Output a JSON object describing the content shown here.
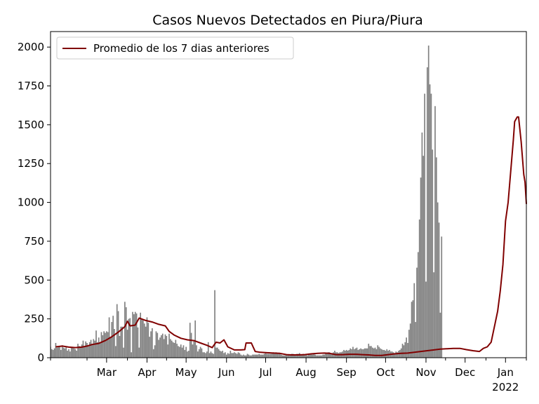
{
  "chart_data": {
    "type": "bar",
    "title": "Casos Nuevos Detectados en Piura/Piura",
    "xlabel": "",
    "ylabel": "",
    "ylim": [
      0,
      2100
    ],
    "y_ticks": [
      0,
      250,
      500,
      750,
      1000,
      1250,
      1500,
      1750,
      2000
    ],
    "x_ticks": [
      {
        "label": "Mar",
        "date": "2021-03-01"
      },
      {
        "label": "Apr",
        "date": "2021-04-01"
      },
      {
        "label": "May",
        "date": "2021-05-01"
      },
      {
        "label": "Jun",
        "date": "2021-06-01"
      },
      {
        "label": "Jul",
        "date": "2021-07-01"
      },
      {
        "label": "Aug",
        "date": "2021-08-01"
      },
      {
        "label": "Sep",
        "date": "2021-09-01"
      },
      {
        "label": "Oct",
        "date": "2021-10-01"
      },
      {
        "label": "Nov",
        "date": "2021-11-01"
      },
      {
        "label": "Dec",
        "date": "2021-12-01"
      },
      {
        "label": "Jan",
        "date": "2022-01-01"
      }
    ],
    "x_year_label": {
      "label": "2022",
      "date": "2022-01-01"
    },
    "x_range": [
      "2021-02-01",
      "2022-02-01"
    ],
    "legend": {
      "label": "Promedio de los 7 dias anteriores",
      "position": "upper-left"
    },
    "bar_color": "#808080",
    "line_color": "#800000",
    "series": [
      {
        "name": "Casos nuevos",
        "kind": "bar",
        "start_date": "2021-02-01",
        "values": [
          70,
          55,
          50,
          60,
          95,
          65,
          70,
          75,
          50,
          80,
          65,
          60,
          70,
          45,
          55,
          40,
          70,
          65,
          60,
          55,
          45,
          90,
          75,
          65,
          85,
          110,
          70,
          105,
          95,
          80,
          100,
          115,
          90,
          120,
          110,
          175,
          100,
          130,
          95,
          165,
          145,
          170,
          160,
          170,
          165,
          260,
          135,
          230,
          270,
          185,
          75,
          345,
          300,
          140,
          200,
          200,
          65,
          360,
          325,
          180,
          250,
          255,
          35,
          295,
          280,
          295,
          285,
          195,
          65,
          290,
          250,
          240,
          220,
          200,
          260,
          225,
          135,
          170,
          190,
          55,
          80,
          170,
          160,
          115,
          130,
          145,
          155,
          120,
          150,
          140,
          85,
          155,
          120,
          110,
          100,
          95,
          115,
          90,
          75,
          70,
          85,
          65,
          80,
          50,
          70,
          40,
          45,
          225,
          160,
          85,
          115,
          240,
          80,
          40,
          55,
          70,
          60,
          35,
          35,
          30,
          40,
          100,
          30,
          40,
          30,
          25,
          435,
          65,
          65,
          55,
          45,
          40,
          45,
          30,
          35,
          20,
          30,
          25,
          45,
          30,
          30,
          35,
          30,
          25,
          35,
          30,
          20,
          15,
          20,
          15,
          15,
          25,
          20,
          15,
          15,
          20,
          20,
          20,
          20,
          20,
          25,
          20,
          20,
          20,
          25,
          30,
          25,
          25,
          25,
          25,
          30,
          35,
          25,
          35,
          30,
          30,
          30,
          20,
          15,
          15,
          15,
          20,
          20,
          20,
          20,
          25,
          25,
          20,
          20,
          25,
          25,
          30,
          20,
          20,
          25,
          20,
          20,
          15,
          20,
          20,
          20,
          20,
          25,
          20,
          15,
          15,
          15,
          15,
          15,
          20,
          20,
          25,
          30,
          35,
          35,
          30,
          30,
          35,
          45,
          35,
          35,
          30,
          35,
          35,
          40,
          50,
          45,
          50,
          45,
          50,
          60,
          55,
          70,
          55,
          60,
          65,
          50,
          55,
          60,
          55,
          55,
          60,
          60,
          60,
          90,
          75,
          75,
          65,
          60,
          65,
          55,
          80,
          70,
          60,
          55,
          50,
          50,
          45,
          55,
          45,
          50,
          40,
          40,
          35,
          30,
          40,
          35,
          45,
          50,
          60,
          90,
          80,
          100,
          130,
          95,
          180,
          220,
          360,
          370,
          480,
          230,
          580,
          680,
          890,
          1160,
          1450,
          1300,
          1700,
          490,
          1870,
          2010,
          1760,
          1700,
          1340,
          550,
          1620,
          1290,
          1000,
          870,
          290,
          780
        ]
      },
      {
        "name": "Promedio de los 7 dias anteriores",
        "kind": "line",
        "points": [
          [
            "2021-02-05",
            70
          ],
          [
            "2021-02-10",
            75
          ],
          [
            "2021-02-15",
            68
          ],
          [
            "2021-02-20",
            65
          ],
          [
            "2021-02-25",
            68
          ],
          [
            "2021-03-01",
            75
          ],
          [
            "2021-03-05",
            85
          ],
          [
            "2021-03-10",
            92
          ],
          [
            "2021-03-15",
            110
          ],
          [
            "2021-03-20",
            135
          ],
          [
            "2021-03-25",
            165
          ],
          [
            "2021-03-30",
            200
          ],
          [
            "2021-04-01",
            235
          ],
          [
            "2021-04-03",
            205
          ],
          [
            "2021-04-07",
            210
          ],
          [
            "2021-04-10",
            255
          ],
          [
            "2021-04-15",
            240
          ],
          [
            "2021-04-20",
            230
          ],
          [
            "2021-04-25",
            215
          ],
          [
            "2021-04-30",
            205
          ],
          [
            "2021-05-03",
            170
          ],
          [
            "2021-05-07",
            145
          ],
          [
            "2021-05-12",
            125
          ],
          [
            "2021-05-17",
            115
          ],
          [
            "2021-05-22",
            110
          ],
          [
            "2021-05-27",
            95
          ],
          [
            "2021-06-01",
            80
          ],
          [
            "2021-06-05",
            65
          ],
          [
            "2021-06-08",
            100
          ],
          [
            "2021-06-11",
            95
          ],
          [
            "2021-06-14",
            115
          ],
          [
            "2021-06-17",
            70
          ],
          [
            "2021-06-22",
            50
          ],
          [
            "2021-06-27",
            50
          ],
          [
            "2021-06-30",
            52
          ],
          [
            "2021-07-01",
            95
          ],
          [
            "2021-07-05",
            95
          ],
          [
            "2021-07-08",
            40
          ],
          [
            "2021-07-12",
            35
          ],
          [
            "2021-07-17",
            32
          ],
          [
            "2021-07-22",
            30
          ],
          [
            "2021-07-27",
            28
          ],
          [
            "2021-08-01",
            20
          ],
          [
            "2021-08-05",
            18
          ],
          [
            "2021-08-10",
            18
          ],
          [
            "2021-08-15",
            20
          ],
          [
            "2021-08-20",
            25
          ],
          [
            "2021-08-25",
            28
          ],
          [
            "2021-08-30",
            30
          ],
          [
            "2021-09-03",
            28
          ],
          [
            "2021-09-08",
            20
          ],
          [
            "2021-09-13",
            20
          ],
          [
            "2021-09-18",
            22
          ],
          [
            "2021-09-23",
            22
          ],
          [
            "2021-09-28",
            20
          ],
          [
            "2021-10-03",
            18
          ],
          [
            "2021-10-08",
            15
          ],
          [
            "2021-10-13",
            15
          ],
          [
            "2021-10-18",
            20
          ],
          [
            "2021-10-23",
            25
          ],
          [
            "2021-10-28",
            28
          ],
          [
            "2021-11-02",
            30
          ],
          [
            "2021-11-07",
            35
          ],
          [
            "2021-11-12",
            40
          ],
          [
            "2021-11-17",
            45
          ],
          [
            "2021-11-22",
            50
          ],
          [
            "2021-11-27",
            55
          ],
          [
            "2021-12-02",
            58
          ],
          [
            "2021-12-07",
            60
          ],
          [
            "2021-12-12",
            60
          ],
          [
            "2021-12-17",
            52
          ],
          [
            "2021-12-22",
            45
          ],
          [
            "2021-12-27",
            40
          ],
          [
            "2021-12-30",
            60
          ],
          [
            "2022-01-02",
            70
          ],
          [
            "2022-01-05",
            100
          ],
          [
            "2022-01-08",
            220
          ],
          [
            "2022-01-10",
            300
          ],
          [
            "2022-01-12",
            430
          ],
          [
            "2022-01-14",
            600
          ],
          [
            "2022-01-16",
            880
          ],
          [
            "2022-01-18",
            1000
          ],
          [
            "2022-01-20",
            1200
          ],
          [
            "2022-01-22",
            1400
          ],
          [
            "2022-01-23",
            1520
          ],
          [
            "2022-01-25",
            1550
          ],
          [
            "2022-01-26",
            1550
          ],
          [
            "2022-01-28",
            1390
          ],
          [
            "2022-01-30",
            1180
          ],
          [
            "2022-01-31",
            1130
          ],
          [
            "2022-02-01",
            990
          ]
        ]
      }
    ]
  }
}
